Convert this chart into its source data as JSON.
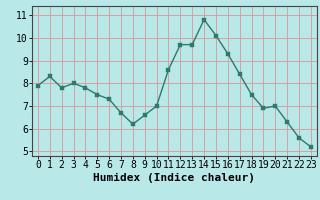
{
  "x": [
    0,
    1,
    2,
    3,
    4,
    5,
    6,
    7,
    8,
    9,
    10,
    11,
    12,
    13,
    14,
    15,
    16,
    17,
    18,
    19,
    20,
    21,
    22,
    23
  ],
  "y": [
    7.9,
    8.3,
    7.8,
    8.0,
    7.8,
    7.5,
    7.3,
    6.7,
    6.2,
    6.6,
    7.0,
    8.6,
    9.7,
    9.7,
    10.8,
    10.1,
    9.3,
    8.4,
    7.5,
    6.9,
    7.0,
    6.3,
    5.6,
    5.2
  ],
  "line_color": "#2d7a6e",
  "marker_color": "#2d7a6e",
  "bg_color": "#b8e8e8",
  "grid_color": "#d4a0a0",
  "xlabel": "Humidex (Indice chaleur)",
  "ylim": [
    4.8,
    11.4
  ],
  "xlim": [
    -0.5,
    23.5
  ],
  "yticks": [
    5,
    6,
    7,
    8,
    9,
    10,
    11
  ],
  "xticks": [
    0,
    1,
    2,
    3,
    4,
    5,
    6,
    7,
    8,
    9,
    10,
    11,
    12,
    13,
    14,
    15,
    16,
    17,
    18,
    19,
    20,
    21,
    22,
    23
  ],
  "xlabel_fontsize": 8,
  "tick_fontsize": 7,
  "marker_size": 2.5,
  "linewidth": 1.0
}
